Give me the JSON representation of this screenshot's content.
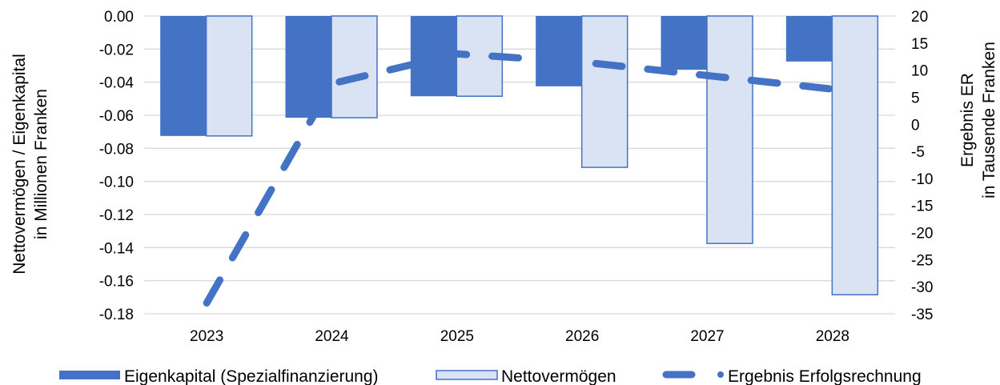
{
  "chart_data": {
    "type": "bar",
    "categories": [
      "2023",
      "2024",
      "2025",
      "2026",
      "2027",
      "2028"
    ],
    "series": [
      {
        "name": "Eigenkapital (Spezialfinanzierung)",
        "type": "bar",
        "axis": "left",
        "color": "#4472c4",
        "values": [
          -0.0725,
          -0.0615,
          -0.0485,
          -0.0425,
          -0.0325,
          -0.0275
        ]
      },
      {
        "name": "Nettovermögen",
        "type": "bar",
        "axis": "left",
        "color": "#dae3f3",
        "stroke": "#4472c4",
        "values": [
          -0.0725,
          -0.0615,
          -0.0485,
          -0.0915,
          -0.1375,
          -0.1685
        ]
      },
      {
        "name": "Ergebnis Erfolgsrechnung",
        "type": "line",
        "style": "dashed",
        "axis": "right",
        "color": "#4472c4",
        "values": [
          -33,
          7.5,
          13,
          11.5,
          9,
          6.5
        ]
      }
    ],
    "y_left": {
      "label_line1": "Nettovermögen / Eigenkapital",
      "label_line2": "in Millionen Franken",
      "ylim": [
        -0.18,
        0.0
      ],
      "ticks": [
        "0.00",
        "-0.02",
        "-0.04",
        "-0.06",
        "-0.08",
        "-0.10",
        "-0.12",
        "-0.14",
        "-0.16",
        "-0.18"
      ],
      "tick_values": [
        0,
        -0.02,
        -0.04,
        -0.06,
        -0.08,
        -0.1,
        -0.12,
        -0.14,
        -0.16,
        -0.18
      ]
    },
    "y_right": {
      "label_line1": "Ergebnis ER",
      "label_line2": "in Tausende Franken",
      "ylim": [
        -35,
        20
      ],
      "ticks": [
        "20",
        "15",
        "10",
        "5",
        "0",
        "-5",
        "-10",
        "-15",
        "-20",
        "-25",
        "-30",
        "-35"
      ],
      "tick_values": [
        20,
        15,
        10,
        5,
        0,
        -5,
        -10,
        -15,
        -20,
        -25,
        -30,
        -35
      ]
    },
    "grid": true,
    "legend_position": "bottom"
  }
}
